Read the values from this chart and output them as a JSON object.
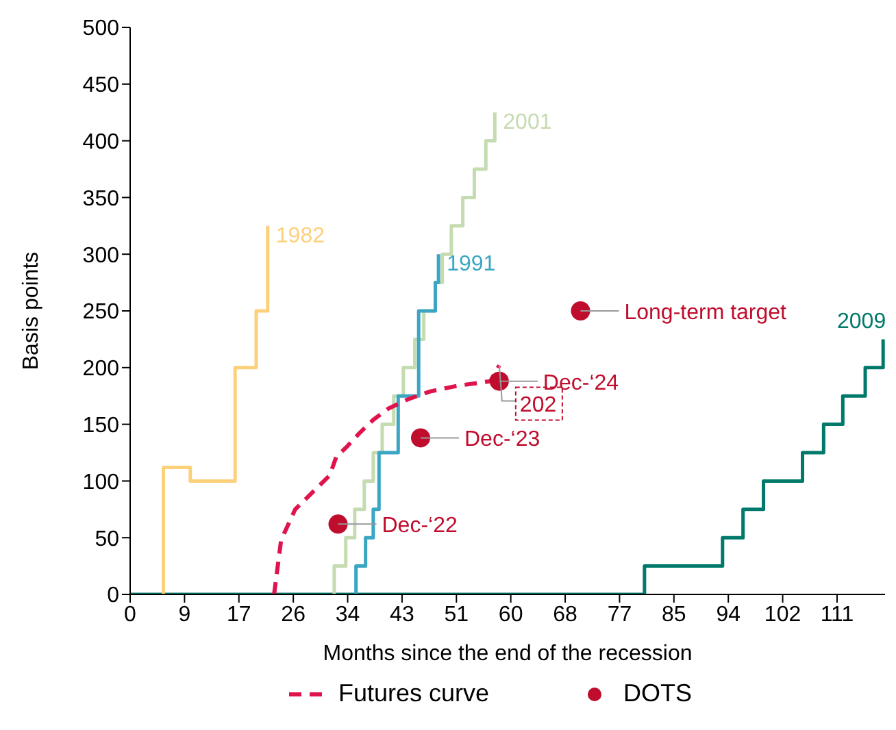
{
  "chart_data": {
    "type": "step",
    "xlabel": "Months since the end of the recession",
    "ylabel": "Basis points",
    "xlim": [
      0,
      118
    ],
    "xticks": [
      0,
      {
        "value": 8.5,
        "label": "9"
      },
      17,
      {
        "value": 25.5,
        "label": "26"
      },
      34,
      {
        "value": 42.5,
        "label": "43"
      },
      51,
      {
        "value": 59.5,
        "label": "60"
      },
      68,
      {
        "value": 76.5,
        "label": "77"
      },
      85,
      {
        "value": 93.5,
        "label": "94"
      },
      102,
      {
        "value": 110.5,
        "label": "111"
      }
    ],
    "ylim": [
      0,
      500
    ],
    "yticks": [
      0,
      50,
      100,
      150,
      200,
      250,
      300,
      350,
      400,
      450,
      500
    ],
    "grid": false,
    "legend": "bottom",
    "series": [
      {
        "name": "2009",
        "color": "#00796b",
        "x": [
          0,
          80.4,
          92.6,
          95.8,
          99,
          105.1,
          108.4,
          111.4,
          114.9,
          117.7
        ],
        "values": [
          0,
          25,
          50,
          75,
          100,
          125,
          150,
          175,
          200,
          225
        ]
      },
      {
        "name": "1982",
        "color": "#fdd07a",
        "x": [
          5.2,
          5.2,
          9.4,
          16.4,
          19.7,
          21.5
        ],
        "values": [
          0,
          112,
          100,
          200,
          250,
          325
        ]
      },
      {
        "name": "2001",
        "color": "#c5dbb0",
        "x": [
          31.9,
          31.9,
          33.7,
          35.1,
          36.6,
          38.0,
          39.4,
          41.2,
          42.7,
          44.5,
          45.9,
          47.7,
          48.8,
          50.2,
          52.0,
          53.8,
          55.6,
          57.0
        ],
        "values": [
          0,
          25,
          50,
          75,
          100,
          125,
          150,
          175,
          200,
          225,
          250,
          275,
          300,
          325,
          350,
          375,
          400,
          425
        ]
      },
      {
        "name": "1991",
        "color": "#3aa6c4",
        "x": [
          35.3,
          35.3,
          36.8,
          38.0,
          38.9,
          41.9,
          45.1,
          47.7,
          48.2
        ],
        "values": [
          0,
          25,
          50,
          75,
          125,
          175,
          250,
          275,
          300
        ]
      },
      {
        "name": "Futures curve",
        "type": "line",
        "line_style": "dashed",
        "color": "#e0144c",
        "x": [
          22.5,
          23.6,
          25.8,
          29.4,
          31.2,
          32.2,
          34.0,
          35.8,
          38.0,
          40.4,
          43.4,
          46.9,
          51.2,
          56.3,
          57.7
        ],
        "values": [
          0,
          48,
          75,
          95,
          105,
          121,
          131,
          142,
          154,
          164,
          172,
          179,
          184,
          188,
          202
        ]
      },
      {
        "name": "DOTS",
        "type": "scatter",
        "marker": "circle",
        "color": "#c00d2d",
        "x": [
          32.5,
          45.4,
          57.7,
          70.4
        ],
        "values": [
          62,
          138,
          188,
          250
        ]
      }
    ],
    "annotations": [
      {
        "text": "Dec-‘22",
        "x": 32.5,
        "y": 62
      },
      {
        "text": "Dec-‘23",
        "x": 45.4,
        "y": 138
      },
      {
        "text": "Dec-‘24",
        "x": 57.7,
        "y": 188
      },
      {
        "text": "Long-term target",
        "x": 70.4,
        "y": 250
      },
      {
        "text": "202",
        "x": 57.7,
        "y": 202
      }
    ]
  }
}
